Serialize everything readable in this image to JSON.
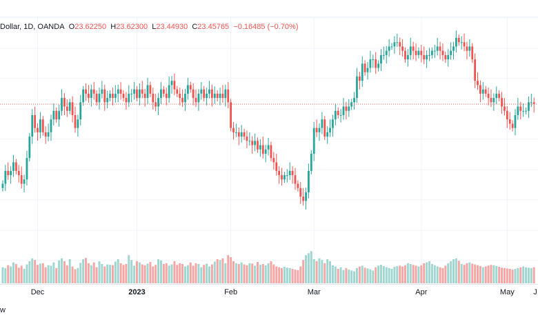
{
  "legend": {
    "symbol": "Dollar, 1D, OANDA",
    "o_key": "O",
    "o_val": "23.62250",
    "h_key": "H",
    "h_val": "23.62300",
    "l_key": "L",
    "l_val": "23.44930",
    "c_key": "C",
    "c_val": "23.45765",
    "change": "−0.16485 (−0.70%)"
  },
  "footer_fragment": "w",
  "colors": {
    "up": "#26a69a",
    "down": "#ef5350",
    "vol_up": "#9fd6d0",
    "vol_down": "#f5a5a3",
    "grid": "#f0f3fa",
    "last_price_line": "#ef5350"
  },
  "chart_data": {
    "type": "candlestick",
    "interval": "1D",
    "last_close": 23.45765,
    "x_tick_labels": [
      {
        "label": "Dec",
        "index": 13,
        "bold": false
      },
      {
        "label": "2023",
        "index": 50,
        "bold": true
      },
      {
        "label": "Feb",
        "index": 85,
        "bold": false
      },
      {
        "label": "Mar",
        "index": 116,
        "bold": false
      },
      {
        "label": "Apr",
        "index": 156,
        "bold": false
      },
      {
        "label": "May",
        "index": 188,
        "bold": false
      },
      {
        "label": "J",
        "index": 226,
        "bold": false
      }
    ],
    "y_range": [
      20.5,
      25.0
    ],
    "volume_max": 120,
    "close": [
      21.6,
      21.9,
      21.8,
      21.9,
      22.1,
      21.9,
      21.8,
      21.6,
      21.7,
      22.2,
      22.7,
      23.2,
      22.9,
      22.8,
      23.1,
      22.8,
      22.7,
      22.8,
      23.1,
      23.3,
      23.1,
      23.3,
      23.6,
      23.4,
      23.3,
      23.5,
      23.2,
      22.9,
      23.1,
      23.5,
      23.8,
      23.7,
      23.6,
      23.8,
      23.7,
      23.5,
      23.7,
      23.8,
      23.5,
      23.6,
      23.7,
      23.6,
      23.7,
      23.8,
      23.7,
      23.6,
      23.5,
      23.7,
      23.7,
      23.8,
      23.6,
      23.8,
      23.7,
      23.6,
      23.9,
      23.7,
      23.5,
      23.4,
      23.6,
      23.8,
      23.7,
      23.6,
      23.9,
      24.0,
      23.8,
      23.7,
      23.6,
      23.5,
      23.7,
      23.9,
      23.8,
      23.6,
      23.5,
      23.7,
      23.8,
      23.6,
      23.7,
      23.8,
      23.6,
      23.7,
      23.6,
      23.7,
      23.6,
      23.8,
      23.5,
      22.9,
      22.8,
      22.8,
      22.7,
      22.8,
      22.7,
      22.6,
      22.6,
      22.5,
      22.6,
      22.4,
      22.5,
      22.3,
      22.4,
      22.5,
      22.2,
      22.1,
      21.9,
      21.8,
      21.7,
      21.8,
      21.8,
      21.9,
      21.8,
      21.6,
      21.5,
      21.3,
      21.2,
      21.4,
      21.9,
      22.3,
      22.9,
      22.8,
      22.9,
      23.1,
      22.7,
      22.8,
      22.9,
      23.1,
      23.3,
      23.2,
      23.2,
      23.4,
      23.3,
      23.4,
      23.5,
      23.6,
      24.1,
      24.0,
      24.4,
      24.2,
      24.3,
      24.5,
      24.5,
      24.3,
      24.4,
      24.6,
      24.6,
      24.7,
      24.8,
      24.8,
      24.9,
      24.9,
      24.8,
      24.7,
      24.5,
      24.6,
      24.8,
      24.7,
      24.6,
      24.7,
      24.6,
      24.5,
      24.6,
      24.6,
      24.7,
      24.7,
      24.8,
      24.7,
      24.6,
      24.5,
      24.6,
      24.7,
      24.8,
      25.0,
      24.9,
      24.9,
      24.8,
      24.7,
      24.8,
      24.5,
      24.0,
      23.9,
      23.7,
      23.8,
      23.7,
      23.6,
      23.5,
      23.6,
      23.7,
      23.6,
      23.4,
      23.3,
      23.1,
      23.0,
      22.9,
      23.2,
      23.4,
      23.3,
      23.3,
      23.3,
      23.5,
      23.5,
      23.46
    ],
    "volume": [
      40,
      38,
      45,
      42,
      52,
      48,
      39,
      44,
      36,
      47,
      55,
      62,
      58,
      46,
      49,
      50,
      40,
      45,
      44,
      52,
      38,
      57,
      62,
      55,
      45,
      60,
      42,
      35,
      38,
      51,
      60,
      63,
      50,
      45,
      52,
      40,
      55,
      48,
      42,
      47,
      46,
      45,
      54,
      60,
      50,
      46,
      48,
      70,
      58,
      44,
      55,
      52,
      47,
      45,
      49,
      53,
      42,
      46,
      60,
      57,
      48,
      50,
      44,
      47,
      55,
      46,
      50,
      48,
      42,
      45,
      52,
      44,
      50,
      48,
      40,
      46,
      49,
      42,
      47,
      54,
      60,
      58,
      62,
      50,
      70,
      65,
      55,
      50,
      48,
      52,
      47,
      45,
      50,
      49,
      44,
      53,
      46,
      48,
      45,
      50,
      55,
      47,
      42,
      40,
      38,
      41,
      39,
      38,
      36,
      34,
      33,
      42,
      58,
      70,
      75,
      80,
      60,
      55,
      62,
      58,
      50,
      60,
      55,
      45,
      42,
      36,
      40,
      33,
      38,
      34,
      32,
      30,
      38,
      42,
      44,
      39,
      37,
      35,
      32,
      40,
      44,
      46,
      43,
      40,
      38,
      36,
      41,
      43,
      44,
      42,
      45,
      50,
      48,
      46,
      44,
      42,
      45,
      50,
      52,
      55,
      48,
      45,
      42,
      40,
      38,
      44,
      50,
      55,
      60,
      62,
      56,
      48,
      46,
      50,
      52,
      49,
      47,
      45,
      43,
      40,
      42,
      44,
      46,
      45,
      43,
      41,
      39,
      38,
      37,
      36,
      34,
      36,
      38,
      40,
      42,
      40,
      39,
      38,
      40
    ]
  }
}
